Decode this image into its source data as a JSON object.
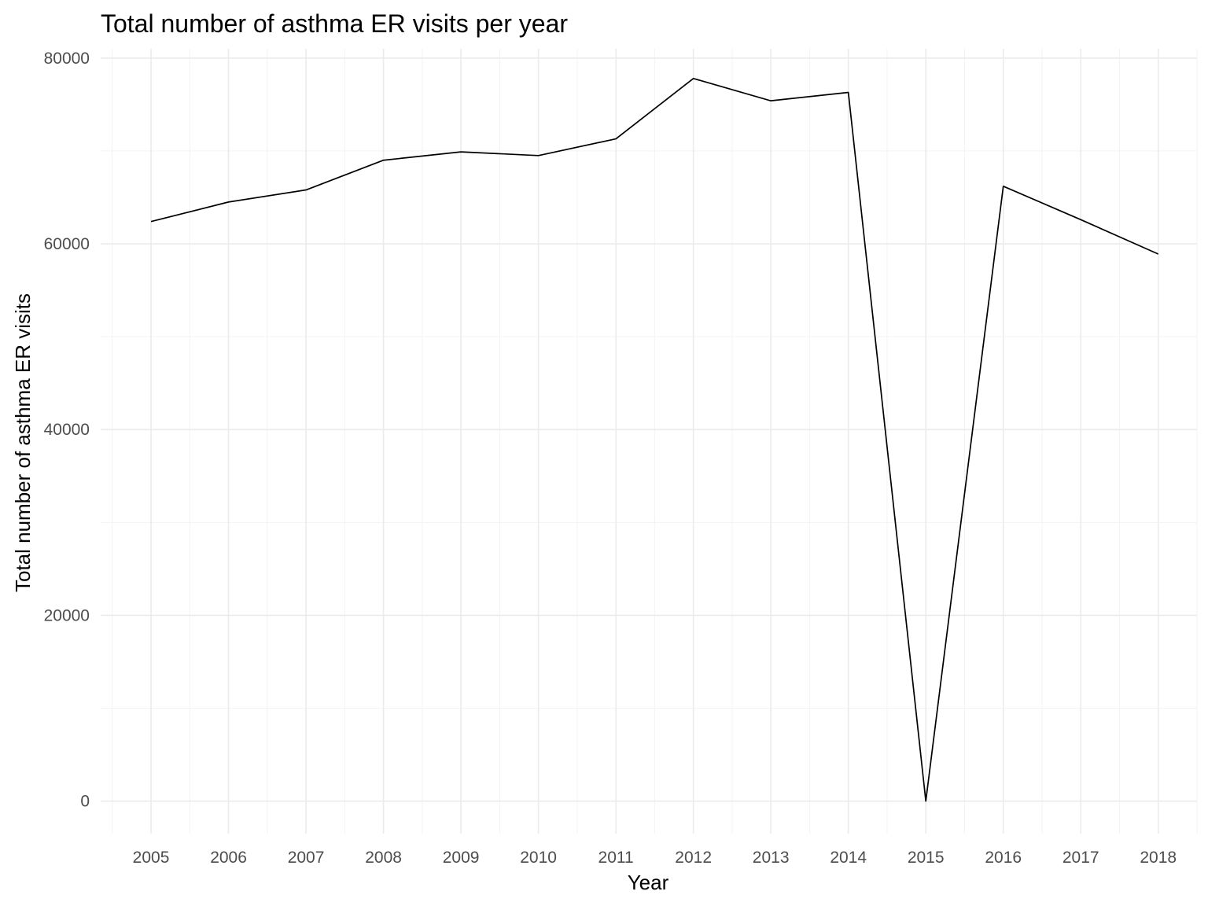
{
  "chart_data": {
    "type": "line",
    "title": "Total number of asthma ER visits per year",
    "xlabel": "Year",
    "ylabel": "Total number of asthma ER visits",
    "x": [
      2005,
      2006,
      2007,
      2008,
      2009,
      2010,
      2011,
      2012,
      2013,
      2014,
      2015,
      2016,
      2017,
      2018
    ],
    "series": [
      {
        "values": [
          62400,
          64500,
          65800,
          69000,
          69900,
          69500,
          71300,
          77800,
          75400,
          76300,
          0,
          66200,
          62600,
          58900
        ]
      }
    ],
    "xlim": [
      2004.35,
      2018.5
    ],
    "ylim": [
      -3500,
      81000
    ],
    "x_ticks": [
      "2005",
      "2006",
      "2007",
      "2008",
      "2009",
      "2010",
      "2011",
      "2012",
      "2013",
      "2014",
      "2015",
      "2016",
      "2017",
      "2018"
    ],
    "y_ticks": [
      "0",
      "20000",
      "40000",
      "60000",
      "80000"
    ],
    "y_tick_values": [
      0,
      20000,
      40000,
      60000,
      80000
    ],
    "grid": true,
    "legend": "none",
    "line_color": "#000000"
  }
}
